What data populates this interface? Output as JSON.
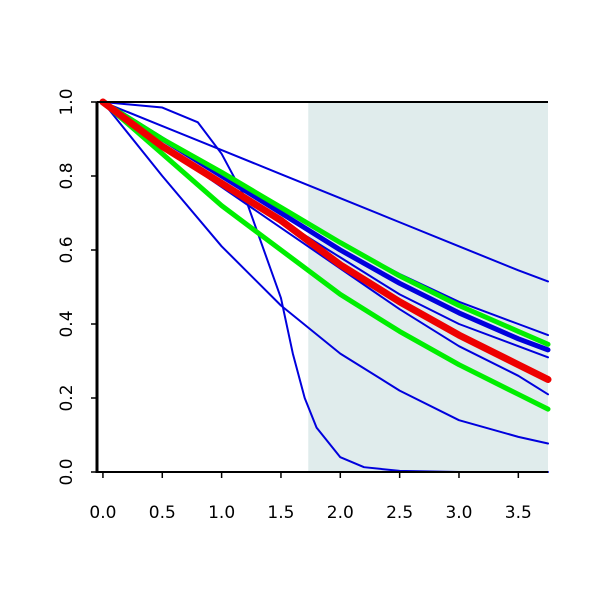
{
  "chart_data": {
    "type": "line",
    "title": "",
    "xlabel": "",
    "ylabel": "",
    "xlim": [
      -0.05,
      3.75
    ],
    "ylim": [
      0.0,
      1.0
    ],
    "x_ticks": [
      0.0,
      0.5,
      1.0,
      1.5,
      2.0,
      2.5,
      3.0,
      3.5
    ],
    "x_tick_labels": [
      "0.0",
      "0.5",
      "1.0",
      "1.5",
      "2.0",
      "2.5",
      "3.0",
      "3.5"
    ],
    "y_ticks": [
      0.0,
      0.2,
      0.4,
      0.6,
      0.8,
      1.0
    ],
    "y_tick_labels": [
      "0.0",
      "0.2",
      "0.4",
      "0.6",
      "0.8",
      "1.0"
    ],
    "grid": false,
    "legend": "none",
    "shaded_region": {
      "x_from": 1.73,
      "x_to": 3.75,
      "color": "#e0ecec"
    },
    "colors": {
      "thin": "#0000dd",
      "green": "#00ee00",
      "red": "#ee0000"
    },
    "series": [
      {
        "style": "thin",
        "x": [
          0,
          0.5,
          1.0,
          1.5,
          2.0,
          2.5,
          3.0,
          3.5,
          3.75
        ],
        "y": [
          1.0,
          0.935,
          0.87,
          0.805,
          0.74,
          0.675,
          0.61,
          0.545,
          0.515
        ]
      },
      {
        "style": "thin",
        "x": [
          0,
          0.5,
          1.0,
          1.5,
          2.0,
          2.5,
          3.0,
          3.5,
          3.75
        ],
        "y": [
          1.0,
          0.9,
          0.8,
          0.71,
          0.62,
          0.535,
          0.46,
          0.4,
          0.37
        ]
      },
      {
        "style": "thin",
        "x": [
          0,
          0.5,
          1.0,
          1.5,
          2.0,
          2.5,
          3.0,
          3.5,
          3.75
        ],
        "y": [
          1.0,
          0.88,
          0.78,
          0.68,
          0.58,
          0.48,
          0.4,
          0.34,
          0.31
        ]
      },
      {
        "style": "thin",
        "x": [
          0,
          0.5,
          1.0,
          1.5,
          2.0,
          2.5,
          3.0,
          3.5,
          3.75
        ],
        "y": [
          1.0,
          0.88,
          0.77,
          0.66,
          0.55,
          0.44,
          0.34,
          0.26,
          0.21
        ]
      },
      {
        "style": "thin",
        "x": [
          0,
          0.5,
          1.0,
          1.5,
          2.0,
          2.5,
          3.0,
          3.5,
          3.75
        ],
        "y": [
          1.0,
          0.8,
          0.61,
          0.45,
          0.32,
          0.22,
          0.14,
          0.095,
          0.077
        ]
      },
      {
        "style": "thin",
        "x": [
          0,
          0.5,
          0.8,
          1.0,
          1.2,
          1.4,
          1.5,
          1.6,
          1.7,
          1.8,
          2.0,
          2.2,
          2.5,
          3.0,
          3.75
        ],
        "y": [
          1.0,
          0.985,
          0.945,
          0.86,
          0.74,
          0.56,
          0.47,
          0.32,
          0.2,
          0.12,
          0.04,
          0.013,
          0.003,
          0.0,
          0.0
        ]
      },
      {
        "style": "blue-thick",
        "x": [
          0,
          0.5,
          1.0,
          1.5,
          2.0,
          2.5,
          3.0,
          3.5,
          3.75
        ],
        "y": [
          1.0,
          0.9,
          0.8,
          0.7,
          0.6,
          0.51,
          0.43,
          0.36,
          0.33
        ]
      },
      {
        "style": "green",
        "x": [
          0,
          0.5,
          1.0,
          1.5,
          2.0,
          2.5,
          3.0,
          3.5,
          3.75
        ],
        "y": [
          1.0,
          0.9,
          0.81,
          0.715,
          0.62,
          0.53,
          0.45,
          0.38,
          0.345
        ]
      },
      {
        "style": "green",
        "x": [
          0,
          0.5,
          1.0,
          1.5,
          2.0,
          2.5,
          3.0,
          3.5,
          3.75
        ],
        "y": [
          1.0,
          0.86,
          0.72,
          0.6,
          0.48,
          0.38,
          0.29,
          0.21,
          0.17
        ]
      },
      {
        "style": "red",
        "x": [
          0,
          0.5,
          1.0,
          1.5,
          2.0,
          2.5,
          3.0,
          3.5,
          3.75
        ],
        "y": [
          1.0,
          0.88,
          0.78,
          0.68,
          0.56,
          0.46,
          0.37,
          0.29,
          0.25
        ]
      }
    ]
  }
}
